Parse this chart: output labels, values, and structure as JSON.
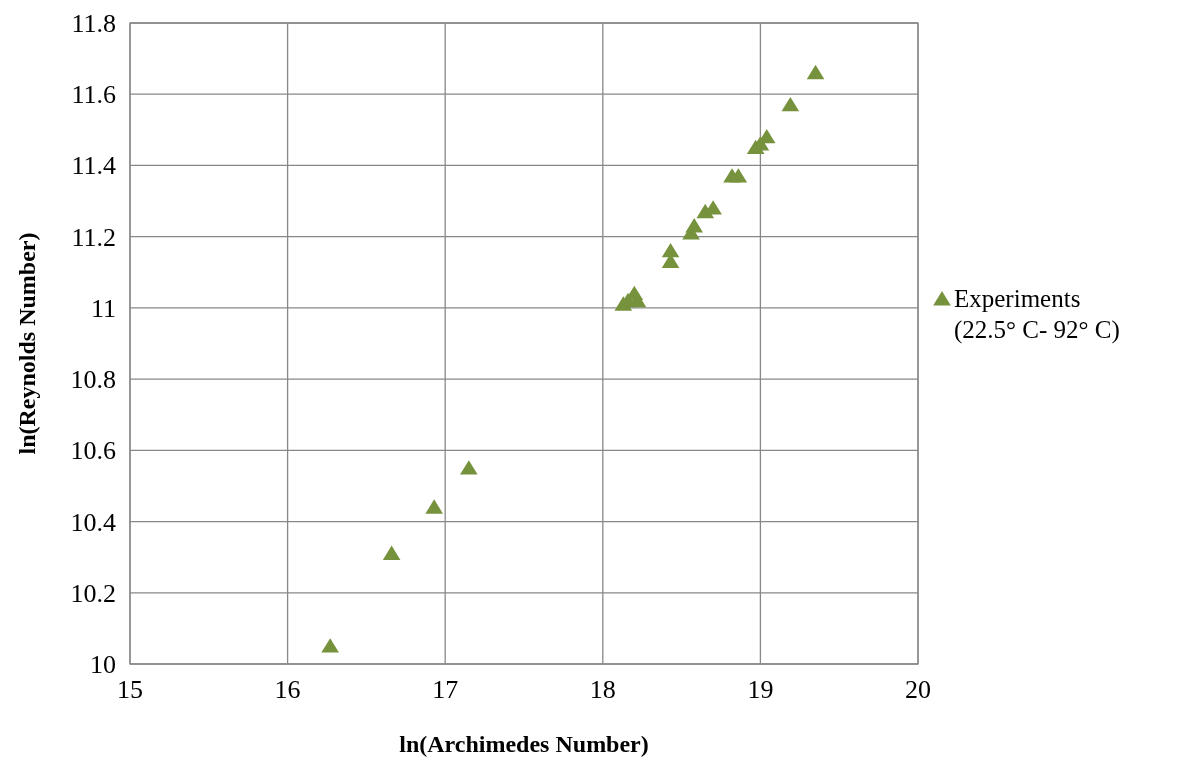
{
  "chart_data": {
    "type": "scatter",
    "xlabel": "ln(Archimedes Number)",
    "ylabel": "ln(Reynolds Number)",
    "xlim": [
      15,
      20
    ],
    "xticks": [
      15,
      16,
      17,
      18,
      19,
      20
    ],
    "ylim": [
      10,
      11.8
    ],
    "yticks": [
      10,
      {
        "value": 10.2,
        "label": "10.2"
      },
      {
        "value": 10.4,
        "label": "10.4"
      },
      {
        "value": 10.6,
        "label": "10.6"
      },
      {
        "value": 10.8,
        "label": "10.8"
      },
      11,
      {
        "value": 11.2,
        "label": "11.2"
      },
      {
        "value": 11.4,
        "label": "11.4"
      },
      {
        "value": 11.6,
        "label": "11.6"
      },
      {
        "value": 11.8,
        "label": "11.8"
      }
    ],
    "grid": true,
    "legend": "right",
    "marker": "triangle",
    "series": [
      {
        "name": "Experiments (22.5° C- 92° C)",
        "color": "#76923c",
        "x": [
          16.27,
          16.66,
          16.93,
          17.15,
          18.13,
          18.16,
          18.2,
          18.22,
          18.43,
          18.43,
          18.56,
          18.58,
          18.65,
          18.7,
          18.82,
          18.86,
          18.97,
          19.0,
          19.04,
          19.19,
          19.35
        ],
        "values": [
          10.05,
          10.31,
          10.44,
          10.55,
          11.01,
          11.02,
          11.04,
          11.02,
          11.13,
          11.16,
          11.21,
          11.23,
          11.27,
          11.28,
          11.37,
          11.37,
          11.45,
          11.46,
          11.48,
          11.57,
          11.66
        ]
      }
    ]
  }
}
